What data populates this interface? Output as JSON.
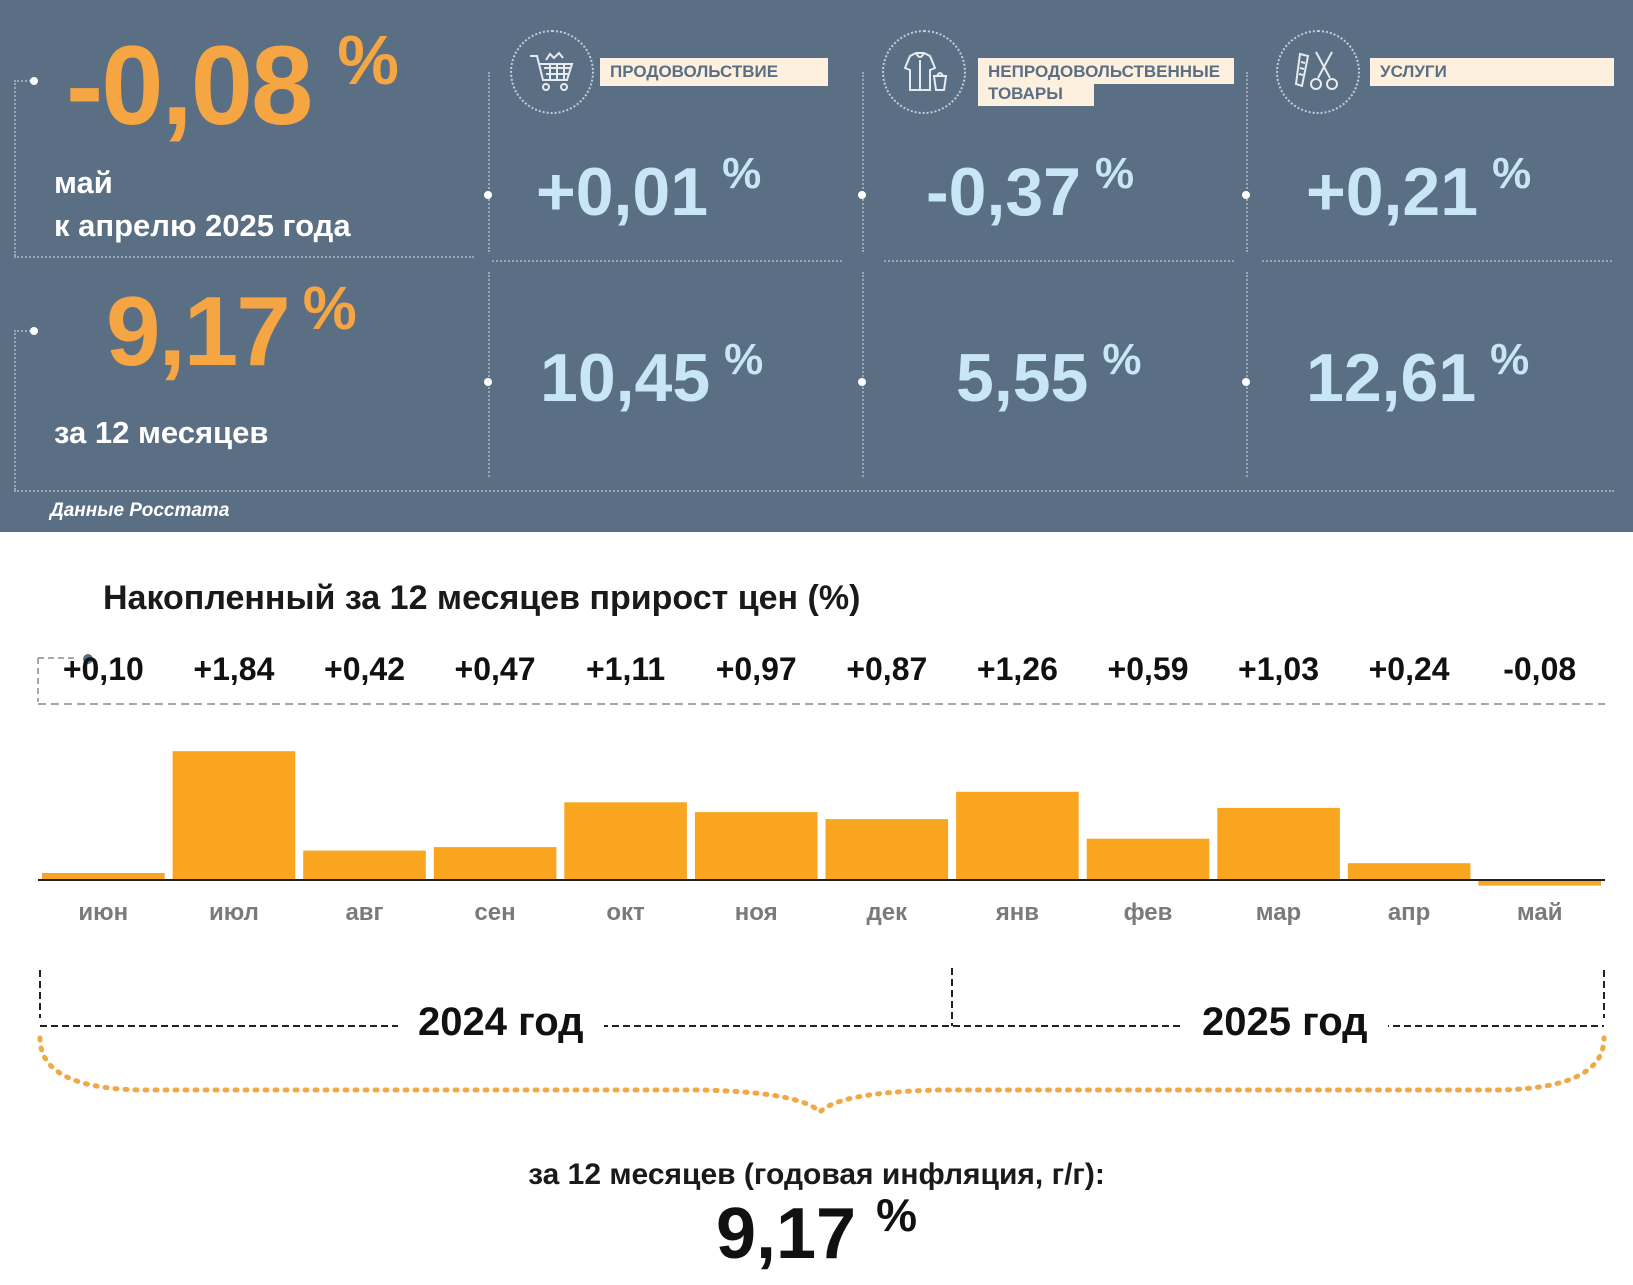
{
  "summary": {
    "monthly": {
      "value": "-0,08",
      "unit": "%",
      "label_line1": "май",
      "label_line2": "к апрелю 2025 года"
    },
    "annual": {
      "value": "9,17",
      "unit": "%",
      "label": "за 12 месяцев"
    },
    "source": "Данные Росстата"
  },
  "categories": [
    {
      "label": "ПРОДОВОЛЬСТВИЕ",
      "icon": "shopping-cart-icon",
      "monthly": "+0,01",
      "annual": "10,45",
      "unit": "%"
    },
    {
      "label": "НЕПРОДОВОЛЬСТВЕННЫЕ ТОВАРЫ",
      "label_line1": "НЕПРОДОВОЛЬСТВЕННЫЕ",
      "label_line2": "ТОВАРЫ",
      "icon": "clothing-icon",
      "monthly": "-0,37",
      "annual": "5,55",
      "unit": "%"
    },
    {
      "label": "УСЛУГИ",
      "icon": "scissors-comb-icon",
      "monthly": "+0,21",
      "annual": "12,61",
      "unit": "%"
    }
  ],
  "chart_data": {
    "type": "bar",
    "title": "Накопленный за 12 месяцев прирост цен (%)",
    "categories": [
      "июн",
      "июл",
      "авг",
      "сен",
      "окт",
      "ноя",
      "дек",
      "янв",
      "фев",
      "мар",
      "апр",
      "май"
    ],
    "values": [
      0.1,
      1.84,
      0.42,
      0.47,
      1.11,
      0.97,
      0.87,
      1.26,
      0.59,
      1.03,
      0.24,
      -0.08
    ],
    "data_labels": [
      "+0,10",
      "+1,84",
      "+0,42",
      "+0,47",
      "+1,11",
      "+0,97",
      "+0,87",
      "+1,26",
      "+0,59",
      "+1,03",
      "+0,24",
      "-0,08"
    ],
    "year_groups": [
      {
        "label": "2024 год",
        "months": 7
      },
      {
        "label": "2025 год",
        "months": 5
      }
    ],
    "total_label": "за 12 месяцев (годовая инфляция, г/г):",
    "total_value": "9,17",
    "total_unit": "%",
    "bar_color": "#f9a51f",
    "grid": false
  },
  "colors": {
    "panel": "#5b6f84",
    "accent": "#f5a542",
    "light_value": "#c8e6f5",
    "label_bg": "#fdf0de",
    "bar": "#f9a51f"
  }
}
